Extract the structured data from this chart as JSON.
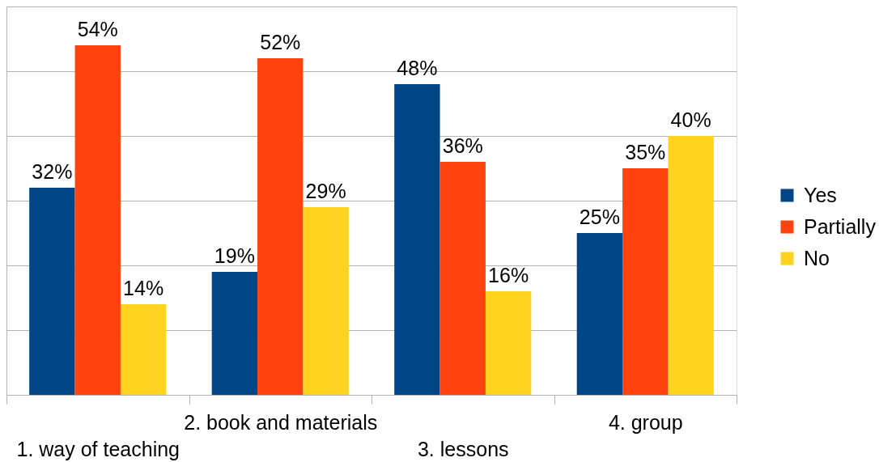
{
  "chart_data": {
    "type": "bar",
    "categories": [
      "1. way of teaching",
      "2. book and materials",
      "3. lessons",
      "4. group"
    ],
    "series": [
      {
        "name": "Yes",
        "color": "#004586",
        "values": [
          32,
          19,
          48,
          25
        ],
        "value_labels": [
          "32%",
          "19%",
          "48%",
          "25%"
        ]
      },
      {
        "name": "Partially",
        "color": "#ff420e",
        "values": [
          54,
          52,
          36,
          35
        ],
        "value_labels": [
          "54%",
          "52%",
          "36%",
          "35%"
        ]
      },
      {
        "name": "No",
        "color": "#ffd320",
        "values": [
          14,
          29,
          16,
          40
        ],
        "value_labels": [
          "14%",
          "29%",
          "16%",
          "40%"
        ]
      }
    ],
    "ylim": [
      0,
      60
    ],
    "yticks": [
      {
        "value": 0,
        "label": null
      },
      {
        "value": 10,
        "label": null
      },
      {
        "value": 20,
        "label": null
      },
      {
        "value": 30,
        "label": null
      },
      {
        "value": 40,
        "label": null
      },
      {
        "value": 50,
        "label": null
      },
      {
        "value": 60,
        "label": null
      }
    ],
    "grid": "y",
    "legend": "right",
    "tick_labels": "x"
  }
}
